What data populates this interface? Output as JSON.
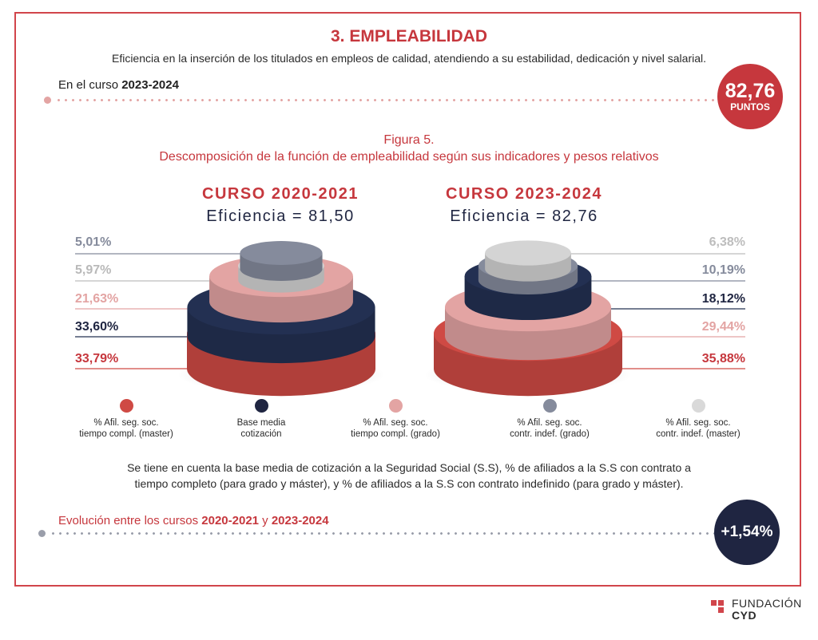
{
  "header": {
    "title": "3. EMPLEABILIDAD",
    "subtitle": "Eficiencia en la inserción de los titulados en empleos de calidad, atendiendo a su estabilidad, dedicación y nivel salarial.",
    "curso_prefix": "En el curso ",
    "curso_value": "2023-2024",
    "score": "82,76",
    "score_unit": "PUNTOS"
  },
  "figure": {
    "title": "Figura 5.",
    "subtitle": "Descomposición de la función de empleabilidad según sus indicadores y pesos relativos"
  },
  "colors": {
    "accent_red": "#c6373d",
    "navy": "#1f2541",
    "master_tc": "#cf4a44",
    "base_media": "#233052",
    "grado_tc": "#e3a4a3",
    "indef_grado": "#858b9c",
    "indef_master": "#d4d4d4"
  },
  "chart_data": [
    {
      "type": "stacked-cylinder",
      "title": "CURSO 2020-2021",
      "subtitle": "Eficiencia = 81,50",
      "efficiency": 81.5,
      "series": [
        {
          "name": "% Afil. seg. soc. contr. indef. (grado)",
          "label": "5,01%",
          "value": 5.01
        },
        {
          "name": "% Afil. seg. soc. contr. indef. (master)",
          "label": "5,97%",
          "value": 5.97
        },
        {
          "name": "% Afil. seg. soc. tiempo compl. (grado)",
          "label": "21,63%",
          "value": 21.63
        },
        {
          "name": "Base media cotización",
          "label": "33,60%",
          "value": 33.6
        },
        {
          "name": "% Afil. seg. soc. tiempo compl. (master)",
          "label": "33,79%",
          "value": 33.79
        }
      ]
    },
    {
      "type": "stacked-cylinder",
      "title": "CURSO 2023-2024",
      "subtitle": "Eficiencia = 82,76",
      "efficiency": 82.76,
      "series": [
        {
          "name": "% Afil. seg. soc. contr. indef. (master)",
          "label": "6,38%",
          "value": 6.38
        },
        {
          "name": "% Afil. seg. soc. contr. indef. (grado)",
          "label": "10,19%",
          "value": 10.19
        },
        {
          "name": "Base media cotización",
          "label": "18,12%",
          "value": 18.12
        },
        {
          "name": "% Afil. seg. soc. tiempo compl. (grado)",
          "label": "29,44%",
          "value": 29.44
        },
        {
          "name": "% Afil. seg. soc. tiempo compl. (master)",
          "label": "35,88%",
          "value": 35.88
        }
      ]
    }
  ],
  "legend": [
    {
      "line1": "% Afil. seg. soc.",
      "line2": "tiempo compl. (master)",
      "color": "#cf4a44"
    },
    {
      "line1": "Base media",
      "line2": "cotización",
      "color": "#1f2541"
    },
    {
      "line1": "% Afil. seg. soc.",
      "line2": "tiempo compl. (grado)",
      "color": "#e3a4a3"
    },
    {
      "line1": "% Afil. seg. soc.",
      "line2": "contr. indef. (grado)",
      "color": "#858b9c"
    },
    {
      "line1": "% Afil. seg. soc.",
      "line2": "contr. indef. (master)",
      "color": "#d9d9d9"
    }
  ],
  "note": {
    "line1": "Se tiene en cuenta la base media de cotización a la Seguridad Social (S.S), % de afiliados a la S.S con contrato a",
    "line2": "tiempo completo (para grado y máster), y % de afiliados a la S.S con contrato indefinido (para grado y máster)."
  },
  "evolution": {
    "prefix": "Evolución entre los cursos ",
    "from": "2020-2021",
    "connector": " y ",
    "to": "2023-2024",
    "value": "+1,54%"
  },
  "logo": {
    "line1": "FUNDACIÓN",
    "line2": "CYD"
  }
}
